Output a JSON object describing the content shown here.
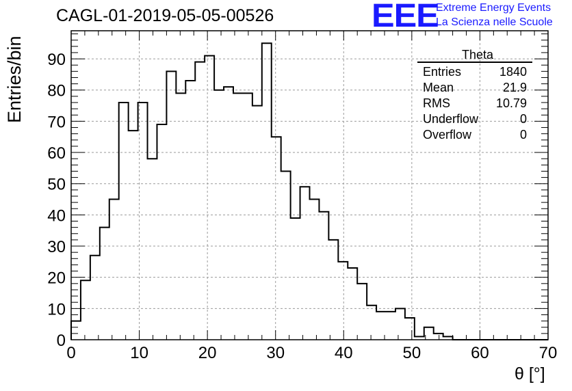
{
  "header": {
    "title": "CAGL-01-2019-05-05-00526",
    "logo_text": "EEE",
    "logo_line1": "Extreme Energy Events",
    "logo_line2": "La Scienza nelle Scuole"
  },
  "stats": {
    "title": "Theta",
    "rows": [
      {
        "label": "Entries",
        "value": "1840"
      },
      {
        "label": "Mean",
        "value": "21.9"
      },
      {
        "label": "RMS",
        "value": "10.79"
      },
      {
        "label": "Underflow",
        "value": "0"
      },
      {
        "label": "Overflow",
        "value": "0"
      }
    ]
  },
  "chart_data": {
    "type": "bar",
    "style": "step-histogram",
    "xlabel": "θ [°]",
    "ylabel": "Entries/bin",
    "xlim": [
      0,
      70
    ],
    "ylim": [
      0,
      99
    ],
    "xticks": [
      0,
      10,
      20,
      30,
      40,
      50,
      60,
      70
    ],
    "yticks": [
      0,
      10,
      20,
      30,
      40,
      50,
      60,
      70,
      80,
      90
    ],
    "grid": true,
    "bin_width": 1.4,
    "bin_edges_start": 0,
    "values": [
      6,
      19,
      27,
      36,
      45,
      76,
      67,
      76,
      58,
      69,
      86,
      79,
      83,
      89,
      91,
      80,
      81,
      79,
      79,
      75,
      95,
      65,
      54,
      39,
      49,
      45,
      41,
      32,
      25,
      23,
      18,
      11,
      9,
      9,
      10,
      7,
      1,
      4,
      2,
      1,
      0,
      0,
      0,
      0,
      0,
      0,
      0,
      0,
      0,
      0
    ],
    "line_color": "#000000",
    "grid_color": "#9a9a9a"
  }
}
